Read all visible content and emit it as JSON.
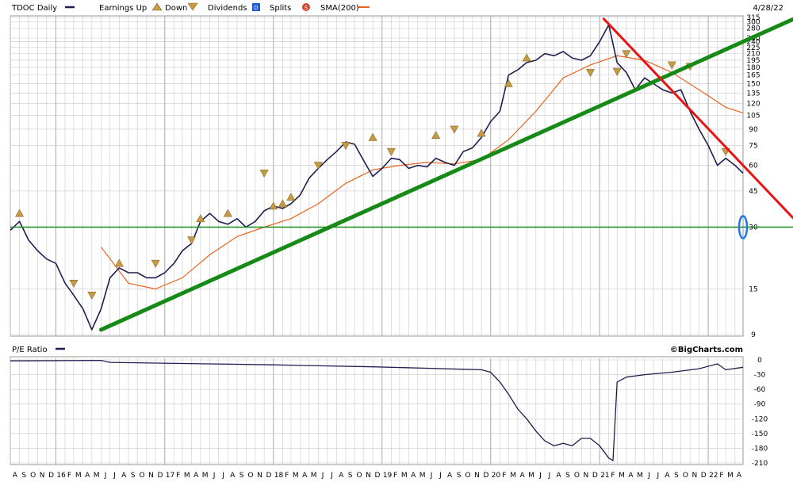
{
  "header": {
    "ticker_label": "TDOC Daily",
    "earnings_label": "Earnings Up",
    "down_label": "Down",
    "dividends_label": "Dividends",
    "dividends_badge": "D",
    "splits_label": "Splits",
    "splits_badge": "S",
    "sma_label": "SMA(200)",
    "date": "4/28/22"
  },
  "watermark": "©BigCharts.com",
  "colors": {
    "price": "#1e1e50",
    "sma": "#e8641e",
    "trend_green": "#168a16",
    "trend_red": "#e81414",
    "hline": "#168a16",
    "marker": "#c79a46",
    "marker_border": "#8a6a26",
    "grid": "#c8c8c8",
    "highlight": "#1e78e6",
    "dividend_badge": "#1e5adc",
    "split_badge": "#d24632"
  },
  "chart_data": [
    {
      "type": "line",
      "title": "TDOC Daily",
      "scale": "log",
      "ylim": [
        9,
        315
      ],
      "y_ticks": [
        315,
        300,
        280,
        250,
        240,
        225,
        210,
        195,
        180,
        165,
        150,
        135,
        120,
        105,
        90,
        75,
        60,
        45,
        30,
        15,
        9
      ],
      "x_tick_labels": [
        "A",
        "S",
        "O",
        "N",
        "D",
        "16",
        "F",
        "M",
        "A",
        "M",
        "J",
        "J",
        "A",
        "S",
        "O",
        "N",
        "D",
        "17",
        "F",
        "M",
        "A",
        "M",
        "J",
        "J",
        "A",
        "S",
        "O",
        "N",
        "D",
        "18",
        "F",
        "M",
        "A",
        "M",
        "J",
        "J",
        "A",
        "S",
        "O",
        "N",
        "D",
        "19",
        "F",
        "M",
        "A",
        "M",
        "J",
        "J",
        "A",
        "S",
        "O",
        "N",
        "D",
        "20",
        "F",
        "M",
        "A",
        "M",
        "J",
        "J",
        "A",
        "S",
        "O",
        "N",
        "D",
        "21",
        "F",
        "M",
        "A",
        "M",
        "J",
        "J",
        "A",
        "S",
        "O",
        "N",
        "D",
        "22",
        "F",
        "M",
        "A"
      ],
      "x_range": [
        "2015-08-01",
        "2022-04-28"
      ],
      "series": [
        {
          "name": "TDOC Daily",
          "points": [
            [
              "2015-08-01",
              29
            ],
            [
              "2015-09-01",
              32
            ],
            [
              "2015-10-01",
              26
            ],
            [
              "2015-11-01",
              23
            ],
            [
              "2015-12-01",
              21
            ],
            [
              "2016-01-01",
              20
            ],
            [
              "2016-02-01",
              16
            ],
            [
              "2016-03-01",
              14
            ],
            [
              "2016-04-01",
              12
            ],
            [
              "2016-05-01",
              9.5
            ],
            [
              "2016-06-01",
              12
            ],
            [
              "2016-07-01",
              17
            ],
            [
              "2016-08-01",
              19
            ],
            [
              "2016-09-01",
              18
            ],
            [
              "2016-10-01",
              18
            ],
            [
              "2016-11-01",
              17
            ],
            [
              "2016-12-01",
              17
            ],
            [
              "2017-01-01",
              18
            ],
            [
              "2017-02-01",
              20
            ],
            [
              "2017-03-01",
              23
            ],
            [
              "2017-04-01",
              25
            ],
            [
              "2017-05-01",
              32
            ],
            [
              "2017-06-01",
              35
            ],
            [
              "2017-07-01",
              32
            ],
            [
              "2017-08-01",
              31
            ],
            [
              "2017-09-01",
              33
            ],
            [
              "2017-10-01",
              30
            ],
            [
              "2017-11-01",
              32
            ],
            [
              "2017-12-01",
              36
            ],
            [
              "2018-01-01",
              38
            ],
            [
              "2018-02-01",
              37
            ],
            [
              "2018-03-01",
              39
            ],
            [
              "2018-04-01",
              43
            ],
            [
              "2018-05-01",
              52
            ],
            [
              "2018-06-01",
              58
            ],
            [
              "2018-07-01",
              64
            ],
            [
              "2018-08-01",
              70
            ],
            [
              "2018-09-01",
              78
            ],
            [
              "2018-10-01",
              76
            ],
            [
              "2018-11-01",
              63
            ],
            [
              "2018-12-01",
              53
            ],
            [
              "2019-01-01",
              58
            ],
            [
              "2019-02-01",
              65
            ],
            [
              "2019-03-01",
              64
            ],
            [
              "2019-04-01",
              58
            ],
            [
              "2019-05-01",
              60
            ],
            [
              "2019-06-01",
              59
            ],
            [
              "2019-07-01",
              65
            ],
            [
              "2019-08-01",
              62
            ],
            [
              "2019-09-01",
              60
            ],
            [
              "2019-10-01",
              70
            ],
            [
              "2019-11-01",
              73
            ],
            [
              "2019-12-01",
              82
            ],
            [
              "2020-01-01",
              98
            ],
            [
              "2020-02-01",
              110
            ],
            [
              "2020-03-01",
              165
            ],
            [
              "2020-04-01",
              175
            ],
            [
              "2020-05-01",
              190
            ],
            [
              "2020-06-01",
              195
            ],
            [
              "2020-07-01",
              210
            ],
            [
              "2020-08-01",
              205
            ],
            [
              "2020-09-01",
              215
            ],
            [
              "2020-10-01",
              200
            ],
            [
              "2020-11-01",
              195
            ],
            [
              "2020-12-01",
              205
            ],
            [
              "2021-01-01",
              240
            ],
            [
              "2021-02-01",
              290
            ],
            [
              "2021-03-01",
              190
            ],
            [
              "2021-04-01",
              170
            ],
            [
              "2021-05-01",
              140
            ],
            [
              "2021-06-01",
              160
            ],
            [
              "2021-07-01",
              150
            ],
            [
              "2021-08-01",
              140
            ],
            [
              "2021-09-01",
              135
            ],
            [
              "2021-10-01",
              140
            ],
            [
              "2021-11-01",
              110
            ],
            [
              "2021-12-01",
              90
            ],
            [
              "2022-01-01",
              75
            ],
            [
              "2022-02-01",
              60
            ],
            [
              "2022-03-01",
              65
            ],
            [
              "2022-04-01",
              60
            ],
            [
              "2022-04-28",
              55
            ]
          ]
        },
        {
          "name": "SMA(200)",
          "points": [
            [
              "2016-06-01",
              24
            ],
            [
              "2016-09-01",
              16
            ],
            [
              "2016-12-01",
              15
            ],
            [
              "2017-03-01",
              17
            ],
            [
              "2017-06-01",
              22
            ],
            [
              "2017-09-01",
              27
            ],
            [
              "2017-12-01",
              30
            ],
            [
              "2018-03-01",
              33
            ],
            [
              "2018-06-01",
              39
            ],
            [
              "2018-09-01",
              49
            ],
            [
              "2018-12-01",
              57
            ],
            [
              "2019-03-01",
              60
            ],
            [
              "2019-06-01",
              62
            ],
            [
              "2019-09-01",
              61
            ],
            [
              "2019-12-01",
              64
            ],
            [
              "2020-03-01",
              80
            ],
            [
              "2020-06-01",
              110
            ],
            [
              "2020-09-01",
              160
            ],
            [
              "2020-12-01",
              185
            ],
            [
              "2021-03-01",
              205
            ],
            [
              "2021-06-01",
              195
            ],
            [
              "2021-09-01",
              170
            ],
            [
              "2021-12-01",
              140
            ],
            [
              "2022-03-01",
              115
            ],
            [
              "2022-04-28",
              108
            ]
          ]
        }
      ],
      "earnings_up_markers": [
        [
          "2015-09-01",
          35
        ],
        [
          "2016-08-01",
          20
        ],
        [
          "2017-05-01",
          33
        ],
        [
          "2017-08-01",
          35
        ],
        [
          "2018-01-01",
          38
        ],
        [
          "2018-02-01",
          39
        ],
        [
          "2018-03-01",
          42
        ],
        [
          "2018-12-01",
          82
        ],
        [
          "2019-07-01",
          84
        ],
        [
          "2019-12-01",
          86
        ],
        [
          "2020-03-01",
          150
        ],
        [
          "2020-05-01",
          200
        ]
      ],
      "earnings_down_markers": [
        [
          "2016-03-01",
          16
        ],
        [
          "2016-05-01",
          14
        ],
        [
          "2016-12-01",
          20
        ],
        [
          "2017-04-01",
          26
        ],
        [
          "2017-12-01",
          55
        ],
        [
          "2018-06-01",
          60
        ],
        [
          "2018-09-01",
          75
        ],
        [
          "2019-02-01",
          70
        ],
        [
          "2019-09-01",
          90
        ],
        [
          "2020-12-01",
          170
        ],
        [
          "2021-03-01",
          172
        ],
        [
          "2021-04-01",
          210
        ],
        [
          "2021-09-01",
          185
        ],
        [
          "2021-11-01",
          182
        ],
        [
          "2022-03-01",
          70
        ]
      ],
      "trendlines": [
        {
          "color": "green",
          "from": [
            "2016-06-01",
            9.5
          ],
          "to": [
            "2022-04-28",
            240
          ]
        },
        {
          "color": "red",
          "from": [
            "2021-01-15",
            310
          ],
          "to": [
            "2022-04-28",
            60
          ]
        }
      ],
      "horizontal_line": 30
    },
    {
      "type": "line",
      "title": "P/E Ratio",
      "ylim": [
        -210,
        0
      ],
      "y_ticks": [
        0,
        -30,
        -60,
        -90,
        -120,
        -150,
        -180,
        -210
      ],
      "series": [
        {
          "name": "P/E Ratio",
          "points": [
            [
              "2015-08-01",
              -2
            ],
            [
              "2016-06-01",
              -1
            ],
            [
              "2016-07-01",
              -5
            ],
            [
              "2017-06-01",
              -8
            ],
            [
              "2018-01-01",
              -10
            ],
            [
              "2018-06-01",
              -12
            ],
            [
              "2018-12-01",
              -14
            ],
            [
              "2019-06-01",
              -17
            ],
            [
              "2019-10-01",
              -19
            ],
            [
              "2019-12-01",
              -20
            ],
            [
              "2020-01-01",
              -25
            ],
            [
              "2020-02-01",
              -45
            ],
            [
              "2020-03-01",
              -70
            ],
            [
              "2020-04-01",
              -100
            ],
            [
              "2020-05-01",
              -120
            ],
            [
              "2020-06-01",
              -145
            ],
            [
              "2020-07-01",
              -165
            ],
            [
              "2020-08-01",
              -175
            ],
            [
              "2020-09-01",
              -170
            ],
            [
              "2020-10-01",
              -175
            ],
            [
              "2020-11-01",
              -160
            ],
            [
              "2020-12-01",
              -160
            ],
            [
              "2021-01-01",
              -175
            ],
            [
              "2021-02-01",
              -200
            ],
            [
              "2021-02-15",
              -205
            ],
            [
              "2021-03-01",
              -45
            ],
            [
              "2021-04-01",
              -35
            ],
            [
              "2021-06-01",
              -30
            ],
            [
              "2021-09-01",
              -25
            ],
            [
              "2021-12-01",
              -18
            ],
            [
              "2022-02-01",
              -8
            ],
            [
              "2022-03-01",
              -20
            ],
            [
              "2022-04-28",
              -15
            ]
          ]
        }
      ]
    }
  ]
}
